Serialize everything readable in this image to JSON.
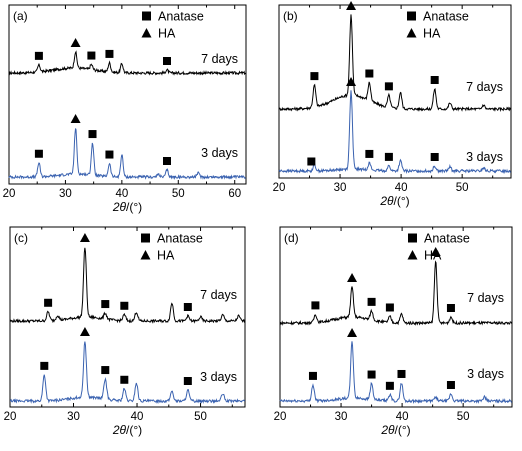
{
  "chart_data": [
    {
      "type": "line",
      "panel_label": "(a)",
      "xlabel": "2θ/(°)",
      "xlim": [
        20,
        62
      ],
      "x_ticks": [
        20,
        30,
        40,
        50,
        60
      ],
      "legend": [
        {
          "marker": "square",
          "label": "Anatase"
        },
        {
          "marker": "triangle",
          "label": "HA"
        }
      ],
      "series": [
        {
          "name": "7 days",
          "color": "#000000",
          "peaks": [
            [
              25.3,
              7
            ],
            [
              31.8,
              16
            ],
            [
              34.6,
              5
            ],
            [
              37.8,
              9
            ],
            [
              40.0,
              9
            ],
            [
              48.0,
              3
            ]
          ],
          "hump": [
            [
              31.5,
              3.6,
              5
            ]
          ],
          "markers": [
            {
              "type": "square",
              "x": 25.3
            },
            {
              "type": "triangle",
              "x": 31.8
            },
            {
              "type": "square",
              "x": 34.6
            },
            {
              "type": "square",
              "x": 37.8
            },
            {
              "type": "square",
              "x": 48.0
            }
          ]
        },
        {
          "name": "3 days",
          "color": "#3a62b0",
          "peaks": [
            [
              25.3,
              14
            ],
            [
              31.8,
              46
            ],
            [
              34.8,
              32
            ],
            [
              37.8,
              13
            ],
            [
              40.0,
              22
            ],
            [
              46.5,
              3
            ],
            [
              48.0,
              7
            ],
            [
              53.5,
              4
            ]
          ],
          "hump": [
            [
              32.0,
              3.0,
              3
            ]
          ],
          "markers": [
            {
              "type": "square",
              "x": 25.3
            },
            {
              "type": "triangle",
              "x": 31.8
            },
            {
              "type": "square",
              "x": 34.8
            },
            {
              "type": "square",
              "x": 37.8
            },
            {
              "type": "square",
              "x": 48.0
            }
          ]
        }
      ]
    },
    {
      "type": "line",
      "panel_label": "(b)",
      "xlabel": "2θ/(°)",
      "xlim": [
        20,
        58
      ],
      "x_ticks": [
        20,
        30,
        40,
        50
      ],
      "legend": [
        {
          "marker": "square",
          "label": "Anatase"
        },
        {
          "marker": "triangle",
          "label": "HA"
        }
      ],
      "series": [
        {
          "name": "7 days",
          "color": "#000000",
          "peaks": [
            [
              25.8,
              22
            ],
            [
              31.8,
              80
            ],
            [
              34.8,
              18
            ],
            [
              38.0,
              12
            ],
            [
              39.9,
              16
            ],
            [
              45.5,
              20
            ],
            [
              48.0,
              6
            ],
            [
              53.5,
              4
            ]
          ],
          "hump": [
            [
              31.8,
              3.0,
              14
            ]
          ],
          "markers": [
            {
              "type": "square",
              "x": 25.8
            },
            {
              "type": "triangle",
              "x": 31.8
            },
            {
              "type": "square",
              "x": 34.8
            },
            {
              "type": "square",
              "x": 38.0
            },
            {
              "type": "square",
              "x": 45.5
            }
          ]
        },
        {
          "name": "3 days",
          "color": "#3a62b0",
          "peaks": [
            [
              25.8,
              6
            ],
            [
              31.8,
              78
            ],
            [
              34.8,
              7
            ],
            [
              38.0,
              5
            ],
            [
              39.9,
              10
            ],
            [
              45.5,
              5
            ],
            [
              48.0,
              4
            ],
            [
              53.5,
              3
            ]
          ],
          "hump": [
            [
              32.0,
              2.5,
              2
            ]
          ],
          "markers": [
            {
              "type": "square",
              "x": 25.3
            },
            {
              "type": "triangle",
              "x": 31.8
            },
            {
              "type": "square",
              "x": 34.8
            },
            {
              "type": "square",
              "x": 38.0
            },
            {
              "type": "square",
              "x": 45.5
            }
          ]
        }
      ]
    },
    {
      "type": "line",
      "panel_label": "(c)",
      "xlabel": "2θ/(°)",
      "xlim": [
        20,
        57
      ],
      "x_ticks": [
        20,
        30,
        40,
        50
      ],
      "legend": [
        {
          "marker": "square",
          "label": "Anatase"
        },
        {
          "marker": "triangle",
          "label": "HA"
        }
      ],
      "series": [
        {
          "name": "7 days",
          "color": "#000000",
          "peaks": [
            [
              26.0,
              9
            ],
            [
              27.5,
              5
            ],
            [
              31.8,
              70
            ],
            [
              35.0,
              6
            ],
            [
              38.0,
              6
            ],
            [
              39.9,
              9
            ],
            [
              45.5,
              18
            ],
            [
              48.0,
              5
            ],
            [
              50.0,
              4
            ],
            [
              53.5,
              6
            ],
            [
              56.0,
              5
            ]
          ],
          "hump": [
            [
              32.0,
              2.5,
              4
            ]
          ],
          "markers": [
            {
              "type": "square",
              "x": 26.0
            },
            {
              "type": "triangle",
              "x": 31.8
            },
            {
              "type": "square",
              "x": 35.0
            },
            {
              "type": "square",
              "x": 38.0
            },
            {
              "type": "square",
              "x": 48.0
            }
          ]
        },
        {
          "name": "3 days",
          "color": "#3a62b0",
          "peaks": [
            [
              25.4,
              26
            ],
            [
              31.8,
              56
            ],
            [
              35.0,
              20
            ],
            [
              38.0,
              12
            ],
            [
              39.9,
              18
            ],
            [
              45.5,
              10
            ],
            [
              48.0,
              11
            ],
            [
              53.5,
              7
            ]
          ],
          "hump": [
            [
              32.0,
              2.5,
              4
            ]
          ],
          "markers": [
            {
              "type": "square",
              "x": 25.4
            },
            {
              "type": "triangle",
              "x": 31.8
            },
            {
              "type": "square",
              "x": 35.0
            },
            {
              "type": "square",
              "x": 38.0
            },
            {
              "type": "square",
              "x": 48.0
            }
          ]
        }
      ]
    },
    {
      "type": "line",
      "panel_label": "(d)",
      "xlabel": "2θ/(°)",
      "xlim": [
        20,
        58
      ],
      "x_ticks": [
        20,
        30,
        40,
        50
      ],
      "legend": [
        {
          "marker": "square",
          "label": "Anatase"
        },
        {
          "marker": "triangle",
          "label": "HA"
        }
      ],
      "series": [
        {
          "name": "7 days",
          "color": "#000000",
          "peaks": [
            [
              25.8,
              8
            ],
            [
              31.8,
              30
            ],
            [
              35.0,
              9
            ],
            [
              38.0,
              6
            ],
            [
              39.9,
              9
            ],
            [
              45.5,
              62
            ],
            [
              48.0,
              6
            ]
          ],
          "hump": [
            [
              31.8,
              2.8,
              6
            ]
          ],
          "markers": [
            {
              "type": "square",
              "x": 25.8
            },
            {
              "type": "triangle",
              "x": 31.8
            },
            {
              "type": "square",
              "x": 35.0
            },
            {
              "type": "square",
              "x": 38.0
            },
            {
              "type": "triangle",
              "x": 45.5
            },
            {
              "type": "square",
              "x": 48.0
            }
          ]
        },
        {
          "name": "3 days",
          "color": "#3a62b0",
          "peaks": [
            [
              25.4,
              16
            ],
            [
              31.8,
              56
            ],
            [
              35.0,
              16
            ],
            [
              38.0,
              6
            ],
            [
              39.9,
              18
            ],
            [
              45.5,
              4
            ],
            [
              48.0,
              7
            ],
            [
              53.5,
              4
            ]
          ],
          "hump": [
            [
              32.0,
              2.5,
              3
            ]
          ],
          "markers": [
            {
              "type": "square",
              "x": 25.4
            },
            {
              "type": "triangle",
              "x": 31.8
            },
            {
              "type": "square",
              "x": 35.0
            },
            {
              "type": "square",
              "x": 38.0
            },
            {
              "type": "square",
              "x": 39.9
            },
            {
              "type": "square",
              "x": 48.0
            }
          ]
        }
      ]
    }
  ]
}
